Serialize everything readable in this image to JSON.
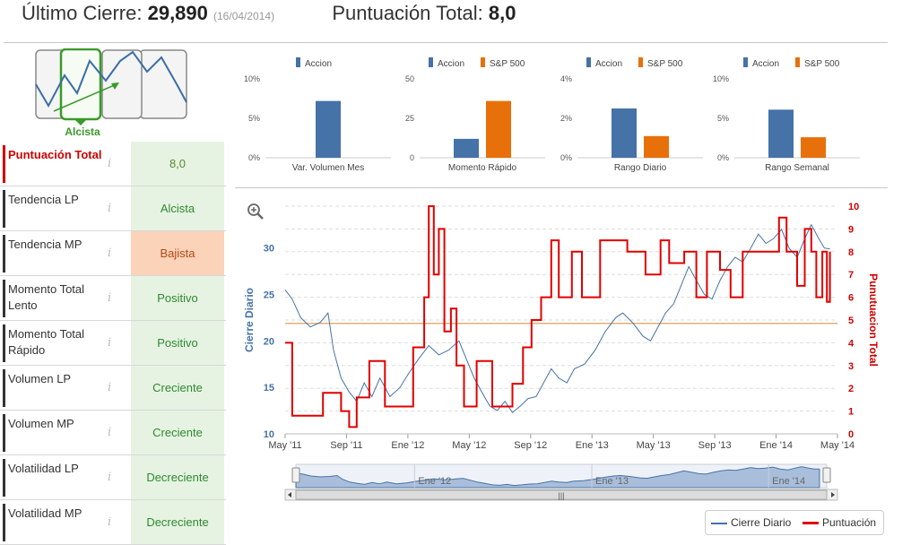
{
  "header": {
    "last_close_label": "Último Cierre:",
    "last_close_value": "29,890",
    "last_close_date": "(16/04/2014)",
    "score_label": "Puntuación Total:",
    "score_value": "8,0"
  },
  "trend": {
    "label": "Alcista",
    "colors": {
      "selected": "#3a9a2a",
      "line": "#3a6ea5"
    }
  },
  "rows": [
    {
      "name": "Puntuación Total",
      "info": "i",
      "status": "8,0",
      "kind": "total"
    },
    {
      "name": "Tendencia LP",
      "info": "i",
      "status": "Alcista",
      "kind": "pos"
    },
    {
      "name": "Tendencia MP",
      "info": "i",
      "status": "Bajista",
      "kind": "neg"
    },
    {
      "name": "Momento Total Lento",
      "info": "i",
      "status": "Positivo",
      "kind": "pos"
    },
    {
      "name": "Momento Total Rápido",
      "info": "i",
      "status": "Positivo",
      "kind": "pos"
    },
    {
      "name": "Volumen LP",
      "info": "i",
      "status": "Creciente",
      "kind": "pos"
    },
    {
      "name": "Volumen MP",
      "info": "i",
      "status": "Creciente",
      "kind": "pos"
    },
    {
      "name": "Volatilidad LP",
      "info": "i",
      "status": "Decreciente",
      "kind": "pos"
    },
    {
      "name": "Volatilidad MP",
      "info": "i",
      "status": "Decreciente",
      "kind": "pos"
    }
  ],
  "chart_data": [
    {
      "type": "bar",
      "categories": [
        "Var. Volumen Mes"
      ],
      "series": [
        {
          "name": "Accion",
          "values": [
            7.2
          ],
          "color": "#4572a7"
        }
      ],
      "yticks": [
        "0%",
        "5%",
        "10%"
      ],
      "ylim": [
        0,
        10
      ]
    },
    {
      "type": "bar",
      "categories": [
        "Momento Rápido"
      ],
      "series": [
        {
          "name": "Accion",
          "values": [
            12
          ],
          "color": "#4572a7"
        },
        {
          "name": "S&P 500",
          "values": [
            36
          ],
          "color": "#e8700a"
        }
      ],
      "yticks": [
        "0",
        "25",
        "50"
      ],
      "ylim": [
        0,
        50
      ]
    },
    {
      "type": "bar",
      "categories": [
        "Rango Diario"
      ],
      "series": [
        {
          "name": "Accion",
          "values": [
            2.5
          ],
          "color": "#4572a7"
        },
        {
          "name": "S&P 500",
          "values": [
            1.1
          ],
          "color": "#e8700a"
        }
      ],
      "yticks": [
        "0%",
        "2%",
        "4%"
      ],
      "ylim": [
        0,
        4
      ]
    },
    {
      "type": "bar",
      "categories": [
        "Rango Semanal"
      ],
      "series": [
        {
          "name": "Accion",
          "values": [
            6.1
          ],
          "color": "#4572a7"
        },
        {
          "name": "S&P 500",
          "values": [
            2.6
          ],
          "color": "#e8700a"
        }
      ],
      "yticks": [
        "0%",
        "5%",
        "10%"
      ],
      "ylim": [
        0,
        10
      ]
    },
    {
      "type": "line",
      "x_ticks": [
        "May '11",
        "Sep '11",
        "Ene '12",
        "May '12",
        "Sep '12",
        "Ene '13",
        "May '13",
        "Sep '13",
        "Ene '14",
        "May '14"
      ],
      "xlim": [
        "2011-05-01",
        "2014-05-01"
      ],
      "y_left": {
        "label": "Cierre Diario",
        "ticks": [
          10,
          15,
          20,
          25,
          30
        ],
        "range": [
          10,
          34.5
        ]
      },
      "y_right": {
        "label": "Punutuacion Total",
        "ticks": [
          0,
          1,
          2,
          3,
          4,
          5,
          6,
          7,
          8,
          9,
          10
        ],
        "range": [
          0,
          10
        ]
      },
      "reference_line": {
        "value": 4.85,
        "axis": "right",
        "color": "#e0b07a"
      },
      "series": [
        {
          "name": "Cierre Diario",
          "color": "#4572a7",
          "axis": "left",
          "points": [
            [
              "2011-05-01",
              25.5
            ],
            [
              "2011-05-15",
              24.5
            ],
            [
              "2011-06-01",
              22.5
            ],
            [
              "2011-06-20",
              21.5
            ],
            [
              "2011-07-10",
              22
            ],
            [
              "2011-07-25",
              23
            ],
            [
              "2011-08-05",
              19
            ],
            [
              "2011-08-20",
              16
            ],
            [
              "2011-09-05",
              14.5
            ],
            [
              "2011-09-20",
              13.5
            ],
            [
              "2011-10-05",
              15.5
            ],
            [
              "2011-10-20",
              14
            ],
            [
              "2011-11-05",
              16
            ],
            [
              "2011-11-25",
              14
            ],
            [
              "2011-12-15",
              15
            ],
            [
              "2012-01-01",
              16.5
            ],
            [
              "2012-01-20",
              18
            ],
            [
              "2012-02-10",
              19.5
            ],
            [
              "2012-03-01",
              18.5
            ],
            [
              "2012-03-20",
              19
            ],
            [
              "2012-04-10",
              20
            ],
            [
              "2012-04-25",
              18
            ],
            [
              "2012-05-10",
              16
            ],
            [
              "2012-05-25",
              14.5
            ],
            [
              "2012-06-10",
              13
            ],
            [
              "2012-06-25",
              12.5
            ],
            [
              "2012-07-10",
              13.5
            ],
            [
              "2012-07-25",
              12.3
            ],
            [
              "2012-08-10",
              13
            ],
            [
              "2012-08-25",
              13.8
            ],
            [
              "2012-09-10",
              14
            ],
            [
              "2012-09-25",
              15.5
            ],
            [
              "2012-10-10",
              17
            ],
            [
              "2012-10-25",
              16
            ],
            [
              "2012-11-10",
              15.5
            ],
            [
              "2012-11-25",
              17
            ],
            [
              "2012-12-15",
              17.5
            ],
            [
              "2013-01-05",
              19
            ],
            [
              "2013-01-25",
              21
            ],
            [
              "2013-02-15",
              22.5
            ],
            [
              "2013-03-01",
              23
            ],
            [
              "2013-03-20",
              22
            ],
            [
              "2013-04-10",
              20.5
            ],
            [
              "2013-04-25",
              20
            ],
            [
              "2013-05-10",
              21.5
            ],
            [
              "2013-05-25",
              23
            ],
            [
              "2013-06-10",
              24
            ],
            [
              "2013-06-25",
              26
            ],
            [
              "2013-07-10",
              28
            ],
            [
              "2013-07-25",
              26.5
            ],
            [
              "2013-08-10",
              25
            ],
            [
              "2013-08-25",
              24.5
            ],
            [
              "2013-09-10",
              26.5
            ],
            [
              "2013-09-25",
              28
            ],
            [
              "2013-10-10",
              29
            ],
            [
              "2013-10-25",
              28.5
            ],
            [
              "2013-11-10",
              30
            ],
            [
              "2013-11-25",
              31.5
            ],
            [
              "2013-12-10",
              30.5
            ],
            [
              "2013-12-25",
              31
            ],
            [
              "2014-01-10",
              32
            ],
            [
              "2014-01-25",
              30
            ],
            [
              "2014-02-10",
              29
            ],
            [
              "2014-02-25",
              31
            ],
            [
              "2014-03-10",
              32.5
            ],
            [
              "2014-03-25",
              31
            ],
            [
              "2014-04-05",
              30
            ],
            [
              "2014-04-16",
              29.9
            ]
          ]
        },
        {
          "name": "Puntuación",
          "color": "#e00000",
          "axis": "right",
          "steps": [
            [
              "2011-05-01",
              4
            ],
            [
              "2011-05-15",
              0.8
            ],
            [
              "2011-07-15",
              1.8
            ],
            [
              "2011-08-20",
              1
            ],
            [
              "2011-09-05",
              0.3
            ],
            [
              "2011-09-20",
              1.6
            ],
            [
              "2011-10-15",
              3.2
            ],
            [
              "2011-11-15",
              1.2
            ],
            [
              "2012-01-10",
              3.8
            ],
            [
              "2012-02-01",
              6
            ],
            [
              "2012-02-10",
              10
            ],
            [
              "2012-02-20",
              7
            ],
            [
              "2012-03-01",
              9
            ],
            [
              "2012-03-12",
              4.5
            ],
            [
              "2012-03-25",
              5.5
            ],
            [
              "2012-04-05",
              3
            ],
            [
              "2012-04-20",
              1.2
            ],
            [
              "2012-05-15",
              3.2
            ],
            [
              "2012-06-15",
              1.2
            ],
            [
              "2012-07-25",
              2.2
            ],
            [
              "2012-08-15",
              3.8
            ],
            [
              "2012-09-01",
              5
            ],
            [
              "2012-09-20",
              6
            ],
            [
              "2012-10-10",
              8.5
            ],
            [
              "2012-10-25",
              6
            ],
            [
              "2012-11-20",
              8
            ],
            [
              "2012-12-10",
              6
            ],
            [
              "2013-01-15",
              8.5
            ],
            [
              "2013-03-10",
              8
            ],
            [
              "2013-04-15",
              7
            ],
            [
              "2013-05-15",
              8.5
            ],
            [
              "2013-06-01",
              7.5
            ],
            [
              "2013-07-01",
              8
            ],
            [
              "2013-07-25",
              6
            ],
            [
              "2013-08-15",
              8
            ],
            [
              "2013-09-10",
              7.2
            ],
            [
              "2013-10-01",
              6
            ],
            [
              "2013-10-25",
              8
            ],
            [
              "2014-01-05",
              9.5
            ],
            [
              "2014-01-20",
              8
            ],
            [
              "2014-02-10",
              6.5
            ],
            [
              "2014-02-25",
              9
            ],
            [
              "2014-03-10",
              8
            ],
            [
              "2014-03-20",
              6
            ],
            [
              "2014-04-01",
              8
            ],
            [
              "2014-04-10",
              5.8
            ],
            [
              "2014-04-16",
              8
            ]
          ]
        }
      ]
    }
  ],
  "navigator": {
    "labels": [
      "Ene '12",
      "Ene '13",
      "Ene '14"
    ],
    "grip": "|||"
  },
  "legend": {
    "items": [
      {
        "name": "Cierre Diario",
        "color": "#4572a7"
      },
      {
        "name": "Puntuación",
        "color": "#e00000"
      }
    ]
  },
  "icons": {
    "zoom": "zoom-in-icon"
  }
}
